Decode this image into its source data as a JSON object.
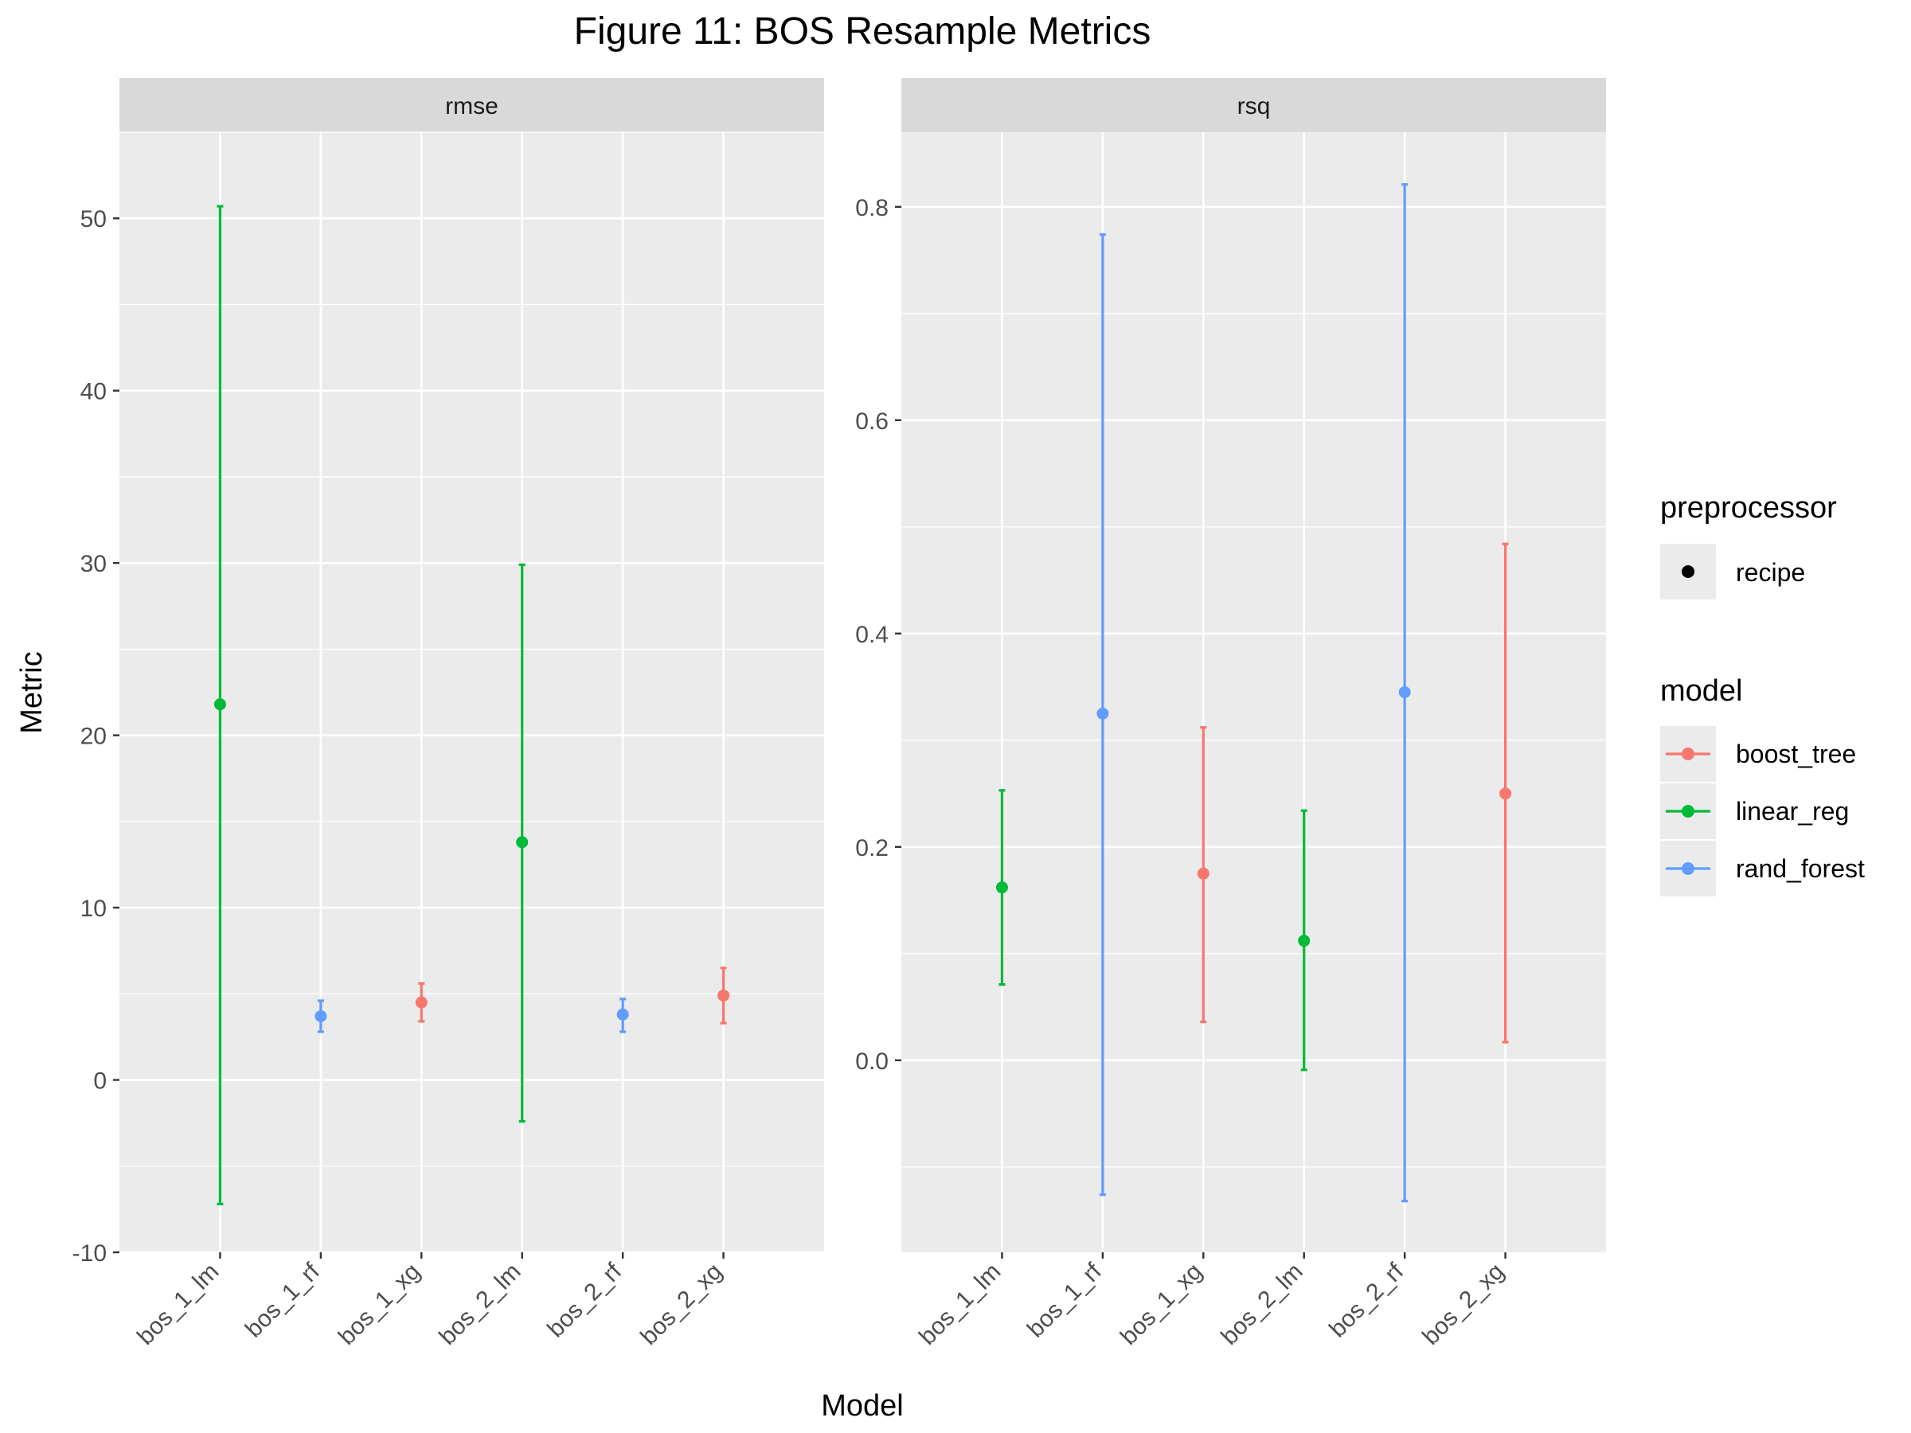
{
  "title": "Figure 11: BOS Resample Metrics",
  "xlabel": "Model",
  "ylabel": "Metric",
  "colors": {
    "boost_tree": "#F8766D",
    "linear_reg": "#00BA38",
    "rand_forest": "#619CFF",
    "panel_bg": "#EBEBEB",
    "strip_bg": "#D9D9D9",
    "grid": "#FFFFFF",
    "legend_key_bg": "#EBEBEB"
  },
  "legend": {
    "preprocessor_title": "preprocessor",
    "preprocessor_items": [
      "recipe"
    ],
    "model_title": "model",
    "model_items": [
      "boost_tree",
      "linear_reg",
      "rand_forest"
    ]
  },
  "chart_data": [
    {
      "type": "errorbar",
      "facet": "rmse",
      "categories": [
        "bos_1_lm",
        "bos_1_rf",
        "bos_1_xg",
        "bos_2_lm",
        "bos_2_rf",
        "bos_2_xg"
      ],
      "model": [
        "linear_reg",
        "rand_forest",
        "boost_tree",
        "linear_reg",
        "rand_forest",
        "boost_tree"
      ],
      "mean": [
        21.8,
        3.7,
        4.5,
        13.8,
        3.8,
        4.9
      ],
      "lower": [
        -7.2,
        2.8,
        3.4,
        -2.4,
        2.8,
        3.3
      ],
      "upper": [
        50.7,
        4.6,
        5.6,
        29.9,
        4.7,
        6.5
      ],
      "ylim": [
        -10,
        55
      ],
      "yticks": [
        -10,
        0,
        10,
        20,
        30,
        40,
        50
      ],
      "ytick_labels": [
        "-10",
        "0",
        "10",
        "20",
        "30",
        "40",
        "50"
      ],
      "grid": true
    },
    {
      "type": "errorbar",
      "facet": "rsq",
      "categories": [
        "bos_1_lm",
        "bos_1_rf",
        "bos_1_xg",
        "bos_2_lm",
        "bos_2_rf",
        "bos_2_xg"
      ],
      "model": [
        "linear_reg",
        "rand_forest",
        "boost_tree",
        "linear_reg",
        "rand_forest",
        "boost_tree"
      ],
      "mean": [
        0.162,
        0.325,
        0.175,
        0.112,
        0.345,
        0.25
      ],
      "lower": [
        0.071,
        -0.126,
        0.036,
        -0.009,
        -0.132,
        0.017
      ],
      "upper": [
        0.253,
        0.774,
        0.312,
        0.234,
        0.821,
        0.484
      ],
      "ylim": [
        -0.18,
        0.87
      ],
      "yticks": [
        0.0,
        0.2,
        0.4,
        0.6,
        0.8
      ],
      "ytick_labels": [
        "0.0",
        "0.2",
        "0.4",
        "0.6",
        "0.8"
      ],
      "grid": true
    }
  ]
}
